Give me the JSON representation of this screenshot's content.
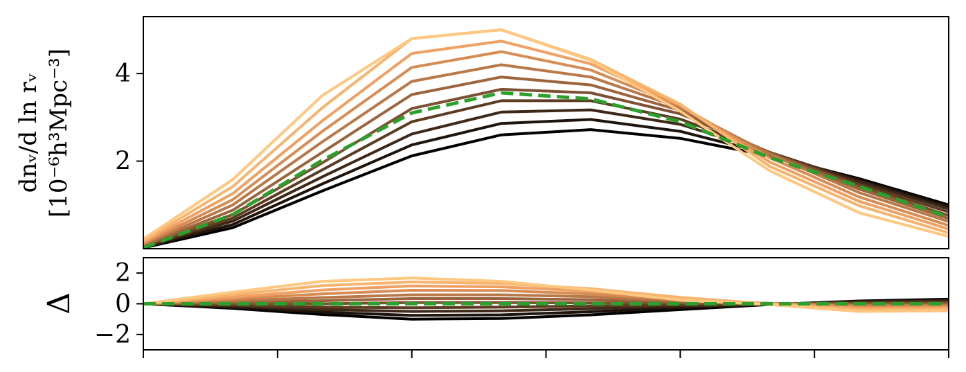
{
  "chart_data": [
    {
      "type": "line",
      "panel": "top",
      "ylabel_line1": "dn_v/d ln r_v",
      "ylabel_line2": "[10^-6 h^3 Mpc^-3]",
      "ylabel_display_line1": "dnᵥ/d ln rᵥ",
      "ylabel_display_line2": "[10⁻⁶h³Mpc⁻³]",
      "xlabel": "",
      "x": [
        0,
        1,
        2,
        3,
        4,
        5,
        6,
        7,
        8,
        9
      ],
      "ylim": [
        0.0,
        5.3
      ],
      "yticks": [
        2,
        4
      ],
      "ytick_labels": [
        "2",
        "4"
      ],
      "grid": false,
      "legend": "none",
      "series": [
        {
          "color": "#000000",
          "values": [
            0.02,
            0.48,
            1.32,
            2.12,
            2.6,
            2.72,
            2.52,
            2.12,
            1.6,
            1.0
          ]
        },
        {
          "color": "#1f140c",
          "values": [
            0.03,
            0.55,
            1.48,
            2.37,
            2.86,
            2.95,
            2.68,
            2.16,
            1.57,
            0.96
          ]
        },
        {
          "color": "#3e2818",
          "values": [
            0.04,
            0.63,
            1.64,
            2.62,
            3.12,
            3.17,
            2.84,
            2.2,
            1.53,
            0.91
          ]
        },
        {
          "color": "#5d3c24",
          "values": [
            0.05,
            0.7,
            1.8,
            2.9,
            3.38,
            3.38,
            2.96,
            2.2,
            1.47,
            0.84
          ]
        },
        {
          "color": "#7c5030",
          "values": [
            0.06,
            0.78,
            1.96,
            3.2,
            3.64,
            3.56,
            3.08,
            2.2,
            1.42,
            0.76
          ]
        },
        {
          "color": "#9b643c",
          "values": [
            0.07,
            0.88,
            2.2,
            3.52,
            3.92,
            3.74,
            3.16,
            2.18,
            1.36,
            0.69
          ]
        },
        {
          "color": "#b97848",
          "values": [
            0.09,
            1.0,
            2.44,
            3.82,
            4.2,
            3.92,
            3.22,
            2.16,
            1.28,
            0.62
          ]
        },
        {
          "color": "#d78c54",
          "values": [
            0.12,
            1.12,
            2.68,
            4.14,
            4.5,
            4.08,
            3.26,
            2.08,
            1.18,
            0.53
          ]
        },
        {
          "color": "#f0a062",
          "values": [
            0.15,
            1.26,
            2.92,
            4.46,
            4.74,
            4.22,
            3.28,
            1.98,
            1.08,
            0.45
          ]
        },
        {
          "color": "#f7b46e",
          "values": [
            0.18,
            1.42,
            3.22,
            4.8,
            5.0,
            4.32,
            3.3,
            1.88,
            0.98,
            0.36
          ]
        },
        {
          "color": "#ffc77f",
          "values": [
            0.22,
            1.58,
            3.5,
            4.8,
            5.0,
            4.3,
            3.14,
            1.78,
            0.82,
            0.28
          ]
        }
      ],
      "reference": {
        "color": "#2ca02c",
        "style": "dashed",
        "values": [
          0.02,
          0.78,
          2.02,
          3.1,
          3.56,
          3.42,
          2.9,
          2.08,
          1.42,
          0.72
        ]
      }
    },
    {
      "type": "line",
      "panel": "bottom",
      "ylabel": "Δ",
      "x": [
        0,
        1,
        2,
        3,
        4,
        5,
        6,
        7,
        8,
        9
      ],
      "ylim": [
        -3,
        3
      ],
      "yticks": [
        -2,
        0,
        2
      ],
      "ytick_labels": [
        "−2",
        "0",
        "2"
      ],
      "xticks": [
        0,
        1.5,
        3,
        4.5,
        6,
        7.5,
        9
      ],
      "xtick_labels": [],
      "grid": false,
      "legend": "none",
      "series": [
        {
          "color": "#000000",
          "values": [
            0.0,
            -0.3,
            -0.7,
            -1.0,
            -0.96,
            -0.72,
            -0.38,
            -0.05,
            0.18,
            0.3
          ]
        },
        {
          "color": "#1f140c",
          "values": [
            0.0,
            -0.23,
            -0.54,
            -0.76,
            -0.72,
            -0.52,
            -0.26,
            -0.04,
            0.15,
            0.24
          ]
        },
        {
          "color": "#3e2818",
          "values": [
            0.0,
            -0.15,
            -0.38,
            -0.5,
            -0.46,
            -0.32,
            -0.15,
            -0.03,
            0.11,
            0.18
          ]
        },
        {
          "color": "#5d3c24",
          "values": [
            0.0,
            -0.08,
            -0.22,
            -0.26,
            -0.22,
            -0.14,
            -0.06,
            -0.02,
            0.06,
            0.11
          ]
        },
        {
          "color": "#7c5030",
          "values": [
            0.0,
            0.02,
            0.0,
            0.08,
            0.08,
            0.06,
            0.05,
            0.0,
            0.0,
            0.04
          ]
        },
        {
          "color": "#9b643c",
          "values": [
            0.0,
            0.1,
            0.2,
            0.34,
            0.34,
            0.26,
            0.12,
            0.02,
            -0.06,
            -0.03
          ]
        },
        {
          "color": "#b97848",
          "values": [
            0.0,
            0.2,
            0.4,
            0.58,
            0.58,
            0.46,
            0.2,
            0.03,
            -0.12,
            -0.1
          ]
        },
        {
          "color": "#d78c54",
          "values": [
            0.0,
            0.32,
            0.64,
            0.88,
            0.86,
            0.64,
            0.3,
            0.02,
            -0.2,
            -0.18
          ]
        },
        {
          "color": "#f0a062",
          "values": [
            0.0,
            0.44,
            0.9,
            1.16,
            1.1,
            0.82,
            0.38,
            0.0,
            -0.3,
            -0.26
          ]
        },
        {
          "color": "#f7b46e",
          "values": [
            0.0,
            0.6,
            1.18,
            1.42,
            1.32,
            0.98,
            0.42,
            -0.02,
            -0.4,
            -0.34
          ]
        },
        {
          "color": "#ffc77f",
          "values": [
            0.0,
            0.76,
            1.46,
            1.68,
            1.46,
            0.9,
            0.24,
            -0.06,
            -0.5,
            -0.46
          ]
        }
      ],
      "reference": {
        "color": "#2ca02c",
        "style": "dashed",
        "values": [
          0,
          0,
          0,
          0,
          0,
          0,
          0,
          0,
          0,
          0
        ]
      }
    }
  ]
}
